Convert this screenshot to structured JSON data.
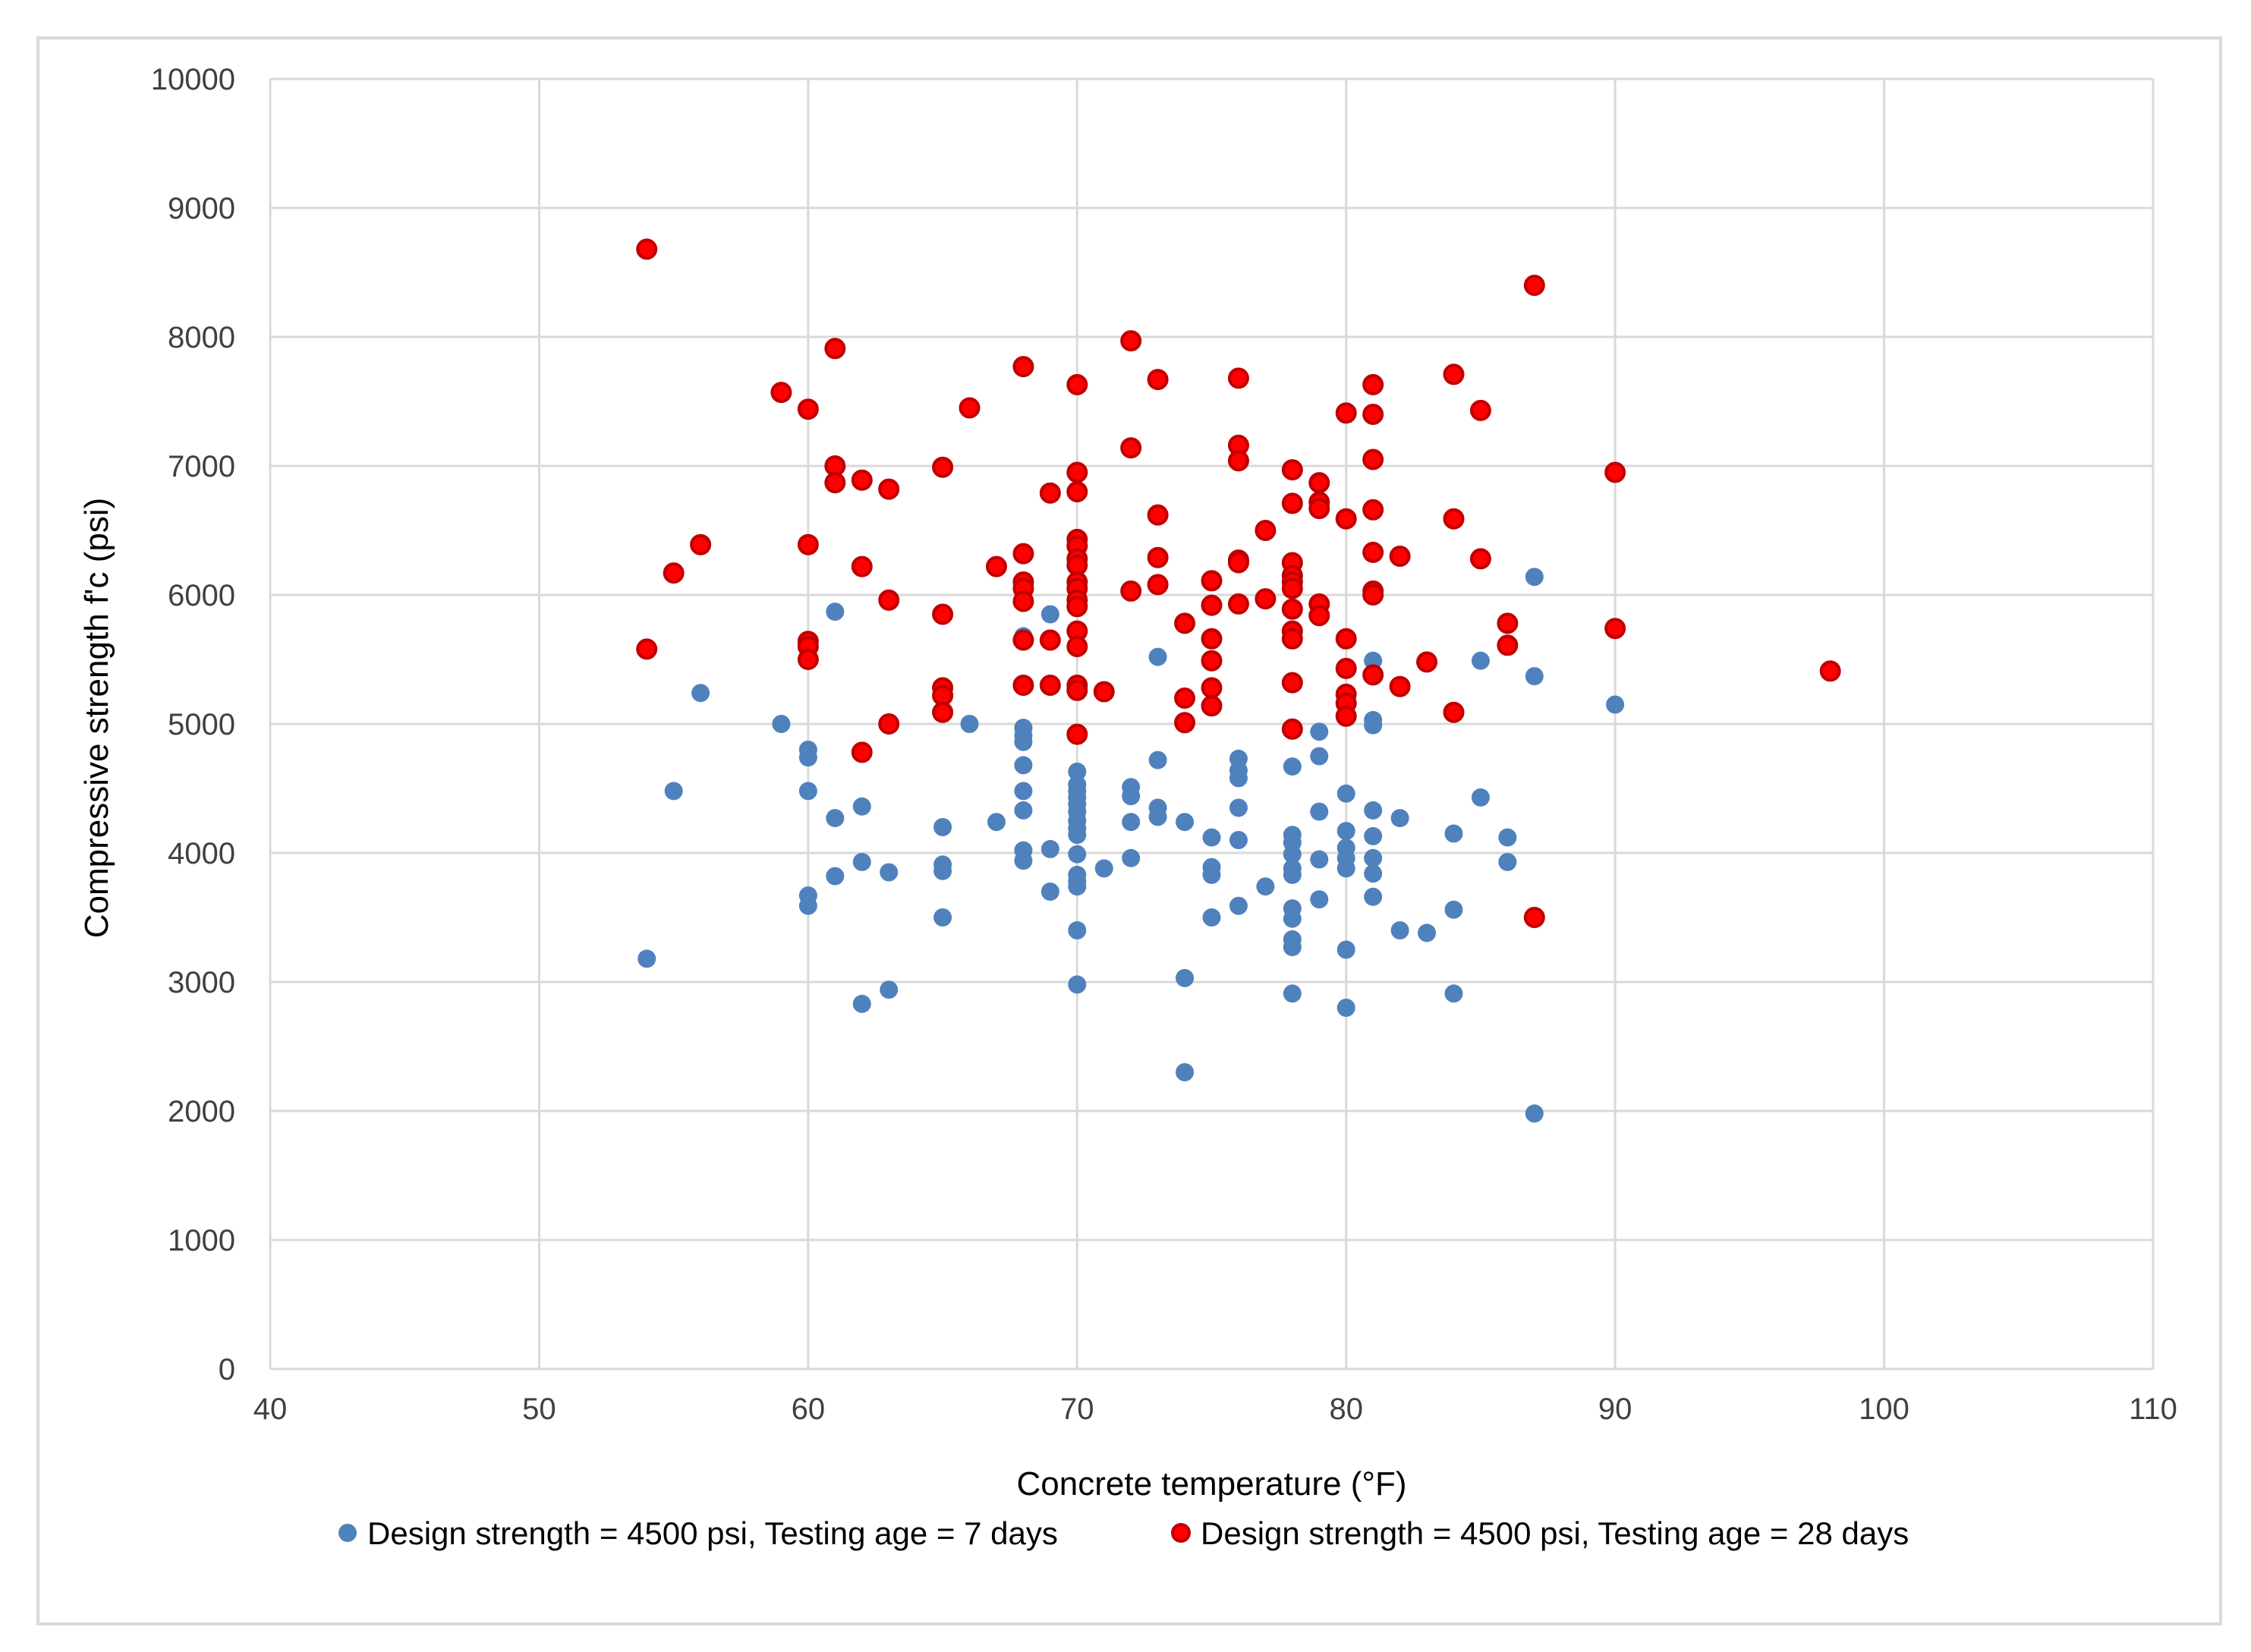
{
  "chart_data": {
    "type": "scatter",
    "title": "",
    "xlabel": "Concrete temperature (°F)",
    "ylabel": "Compressive strength f'c (psi)",
    "xlim": [
      40,
      110
    ],
    "ylim": [
      0,
      10000
    ],
    "xticks": [
      "40",
      "50",
      "60",
      "70",
      "80",
      "90",
      "100",
      "110"
    ],
    "yticks": [
      "0",
      "1000",
      "2000",
      "3000",
      "4000",
      "5000",
      "6000",
      "7000",
      "8000",
      "9000",
      "10000"
    ],
    "grid": true,
    "legend_position": "bottom",
    "series": [
      {
        "name": "Design strength = 4500 psi, Testing age = 7 days",
        "color": "#4f81bd",
        "edge": "#4f81bd",
        "points": [
          [
            54,
            3180
          ],
          [
            55,
            4480
          ],
          [
            56,
            5240
          ],
          [
            59,
            5000
          ],
          [
            60,
            4800
          ],
          [
            60,
            4740
          ],
          [
            60,
            4480
          ],
          [
            60,
            3670
          ],
          [
            60,
            3590
          ],
          [
            61,
            5870
          ],
          [
            61,
            4270
          ],
          [
            61,
            3820
          ],
          [
            62,
            4360
          ],
          [
            62,
            3930
          ],
          [
            62,
            2830
          ],
          [
            63,
            3850
          ],
          [
            63,
            2940
          ],
          [
            65,
            4200
          ],
          [
            65,
            3910
          ],
          [
            65,
            3860
          ],
          [
            65,
            3500
          ],
          [
            66,
            5000
          ],
          [
            67,
            4240
          ],
          [
            68,
            5680
          ],
          [
            68,
            4970
          ],
          [
            68,
            4910
          ],
          [
            68,
            4860
          ],
          [
            68,
            4680
          ],
          [
            68,
            4480
          ],
          [
            68,
            4330
          ],
          [
            68,
            4020
          ],
          [
            68,
            3940
          ],
          [
            69,
            5850
          ],
          [
            69,
            4030
          ],
          [
            69,
            3700
          ],
          [
            70,
            4630
          ],
          [
            70,
            4530
          ],
          [
            70,
            4480
          ],
          [
            70,
            4430
          ],
          [
            70,
            4380
          ],
          [
            70,
            4320
          ],
          [
            70,
            4250
          ],
          [
            70,
            4190
          ],
          [
            70,
            4140
          ],
          [
            70,
            3990
          ],
          [
            70,
            3830
          ],
          [
            70,
            3780
          ],
          [
            70,
            3740
          ],
          [
            70,
            3400
          ],
          [
            70,
            2980
          ],
          [
            71,
            3880
          ],
          [
            72,
            4510
          ],
          [
            72,
            4440
          ],
          [
            72,
            4240
          ],
          [
            72,
            3960
          ],
          [
            73,
            5520
          ],
          [
            73,
            4720
          ],
          [
            73,
            4350
          ],
          [
            73,
            4280
          ],
          [
            74,
            4240
          ],
          [
            74,
            3030
          ],
          [
            74,
            2300
          ],
          [
            75,
            4120
          ],
          [
            75,
            3890
          ],
          [
            75,
            3830
          ],
          [
            75,
            3500
          ],
          [
            76,
            4730
          ],
          [
            76,
            4640
          ],
          [
            76,
            4580
          ],
          [
            76,
            4350
          ],
          [
            76,
            4100
          ],
          [
            76,
            3590
          ],
          [
            77,
            3740
          ],
          [
            78,
            4670
          ],
          [
            78,
            4140
          ],
          [
            78,
            4080
          ],
          [
            78,
            3990
          ],
          [
            78,
            3880
          ],
          [
            78,
            3830
          ],
          [
            78,
            3570
          ],
          [
            78,
            3490
          ],
          [
            78,
            3330
          ],
          [
            78,
            3270
          ],
          [
            78,
            2910
          ],
          [
            79,
            4940
          ],
          [
            79,
            4750
          ],
          [
            79,
            4320
          ],
          [
            79,
            3950
          ],
          [
            79,
            3640
          ],
          [
            80,
            4460
          ],
          [
            80,
            4170
          ],
          [
            80,
            4040
          ],
          [
            80,
            3960
          ],
          [
            80,
            3880
          ],
          [
            80,
            3250
          ],
          [
            80,
            2800
          ],
          [
            81,
            5490
          ],
          [
            81,
            5030
          ],
          [
            81,
            4990
          ],
          [
            81,
            4330
          ],
          [
            81,
            4130
          ],
          [
            81,
            3960
          ],
          [
            81,
            3840
          ],
          [
            81,
            3660
          ],
          [
            82,
            4270
          ],
          [
            82,
            3400
          ],
          [
            83,
            3380
          ],
          [
            84,
            4150
          ],
          [
            84,
            3560
          ],
          [
            84,
            2910
          ],
          [
            85,
            5490
          ],
          [
            85,
            4430
          ],
          [
            86,
            4120
          ],
          [
            86,
            3930
          ],
          [
            87,
            6140
          ],
          [
            87,
            5370
          ],
          [
            87,
            1980
          ],
          [
            90,
            5150
          ]
        ]
      },
      {
        "name": "Design strength = 4500 psi, Testing age = 28 days",
        "color": "#ff0000",
        "edge": "#c00000",
        "points": [
          [
            54,
            8680
          ],
          [
            54,
            5580
          ],
          [
            55,
            6170
          ],
          [
            56,
            6390
          ],
          [
            59,
            7570
          ],
          [
            60,
            7440
          ],
          [
            60,
            6390
          ],
          [
            60,
            5640
          ],
          [
            60,
            5600
          ],
          [
            60,
            5500
          ],
          [
            61,
            7910
          ],
          [
            61,
            7000
          ],
          [
            61,
            6870
          ],
          [
            62,
            6890
          ],
          [
            62,
            6220
          ],
          [
            62,
            4780
          ],
          [
            63,
            6820
          ],
          [
            63,
            5960
          ],
          [
            63,
            5000
          ],
          [
            65,
            6990
          ],
          [
            65,
            5850
          ],
          [
            65,
            5280
          ],
          [
            65,
            5220
          ],
          [
            65,
            5090
          ],
          [
            66,
            7450
          ],
          [
            67,
            6220
          ],
          [
            68,
            7770
          ],
          [
            68,
            6320
          ],
          [
            68,
            6100
          ],
          [
            68,
            6050
          ],
          [
            68,
            5950
          ],
          [
            68,
            5650
          ],
          [
            68,
            5300
          ],
          [
            69,
            6790
          ],
          [
            69,
            5650
          ],
          [
            69,
            5300
          ],
          [
            70,
            7630
          ],
          [
            70,
            6950
          ],
          [
            70,
            6800
          ],
          [
            70,
            6430
          ],
          [
            70,
            6380
          ],
          [
            70,
            6280
          ],
          [
            70,
            6230
          ],
          [
            70,
            6100
          ],
          [
            70,
            6050
          ],
          [
            70,
            5960
          ],
          [
            70,
            5910
          ],
          [
            70,
            5720
          ],
          [
            70,
            5600
          ],
          [
            70,
            5300
          ],
          [
            70,
            5260
          ],
          [
            70,
            4920
          ],
          [
            71,
            5250
          ],
          [
            72,
            7970
          ],
          [
            72,
            7140
          ],
          [
            72,
            6030
          ],
          [
            73,
            7670
          ],
          [
            73,
            6620
          ],
          [
            73,
            6290
          ],
          [
            73,
            6080
          ],
          [
            74,
            5780
          ],
          [
            74,
            5200
          ],
          [
            74,
            5010
          ],
          [
            75,
            6110
          ],
          [
            75,
            5920
          ],
          [
            75,
            5660
          ],
          [
            75,
            5490
          ],
          [
            75,
            5280
          ],
          [
            75,
            5140
          ],
          [
            76,
            7680
          ],
          [
            76,
            7160
          ],
          [
            76,
            7040
          ],
          [
            76,
            6270
          ],
          [
            76,
            6250
          ],
          [
            76,
            5930
          ],
          [
            77,
            6500
          ],
          [
            77,
            5970
          ],
          [
            78,
            6970
          ],
          [
            78,
            6710
          ],
          [
            78,
            6250
          ],
          [
            78,
            6150
          ],
          [
            78,
            6100
          ],
          [
            78,
            6050
          ],
          [
            78,
            5890
          ],
          [
            78,
            5720
          ],
          [
            78,
            5660
          ],
          [
            78,
            5320
          ],
          [
            78,
            4960
          ],
          [
            79,
            6870
          ],
          [
            79,
            6720
          ],
          [
            79,
            6670
          ],
          [
            79,
            5930
          ],
          [
            79,
            5840
          ],
          [
            80,
            7410
          ],
          [
            80,
            6590
          ],
          [
            80,
            5660
          ],
          [
            80,
            5430
          ],
          [
            80,
            5230
          ],
          [
            80,
            5160
          ],
          [
            80,
            5060
          ],
          [
            81,
            7630
          ],
          [
            81,
            7400
          ],
          [
            81,
            7050
          ],
          [
            81,
            6660
          ],
          [
            81,
            6330
          ],
          [
            81,
            6030
          ],
          [
            81,
            6000
          ],
          [
            81,
            5380
          ],
          [
            82,
            6300
          ],
          [
            82,
            5290
          ],
          [
            83,
            5480
          ],
          [
            84,
            7710
          ],
          [
            84,
            6590
          ],
          [
            84,
            5090
          ],
          [
            85,
            7430
          ],
          [
            85,
            6280
          ],
          [
            86,
            5780
          ],
          [
            86,
            5610
          ],
          [
            87,
            8400
          ],
          [
            87,
            3500
          ],
          [
            90,
            6950
          ],
          [
            90,
            5740
          ],
          [
            98,
            5410
          ]
        ]
      }
    ]
  }
}
